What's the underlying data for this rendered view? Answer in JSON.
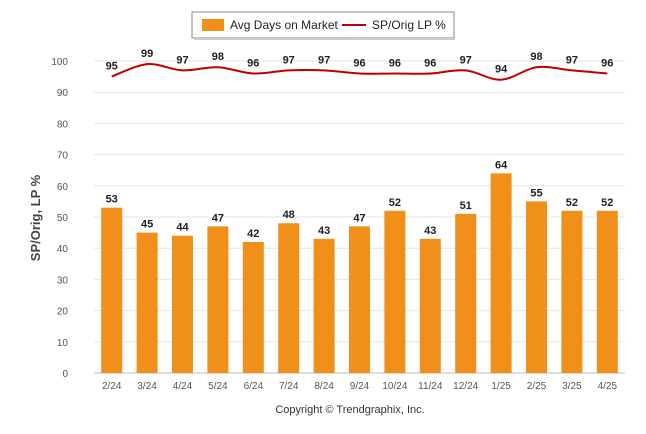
{
  "chart_data": {
    "type": "bar",
    "categories": [
      "2/24",
      "3/24",
      "4/24",
      "5/24",
      "6/24",
      "7/24",
      "8/24",
      "9/24",
      "10/24",
      "11/24",
      "12/24",
      "1/25",
      "2/25",
      "3/25",
      "4/25"
    ],
    "series": [
      {
        "name": "Avg Days on Market",
        "type": "bar",
        "color": "#f0901a",
        "values": [
          53,
          45,
          44,
          47,
          42,
          48,
          43,
          47,
          52,
          43,
          51,
          64,
          55,
          52,
          52
        ]
      },
      {
        "name": "SP/Orig LP %",
        "type": "line",
        "color": "#c00000",
        "values": [
          95,
          99,
          97,
          98,
          96,
          97,
          97,
          96,
          96,
          96,
          97,
          94,
          98,
          97,
          96
        ]
      }
    ],
    "ylabel": "SP/Orig, LP %",
    "ylim": [
      0,
      100
    ],
    "yticks": [
      0,
      10,
      20,
      30,
      40,
      50,
      60,
      70,
      80,
      90,
      100
    ],
    "grid": true,
    "legend": "top-center"
  },
  "footer": {
    "copyright": "Copyright © Trendgraphix, Inc."
  }
}
